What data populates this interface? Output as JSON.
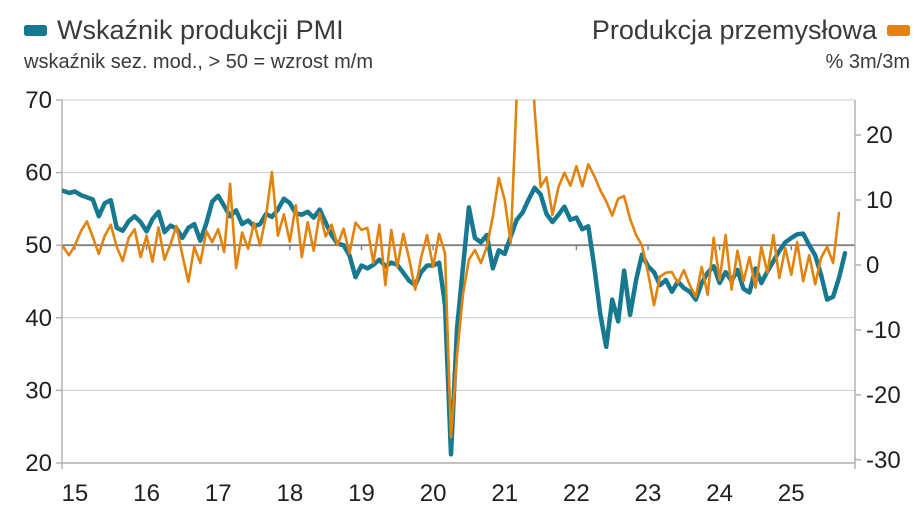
{
  "header": {
    "left": {
      "title": "Wskaźnik produkcji PMI",
      "subtitle": "wskaźnik sez. mod., > 50 = wzrost m/m",
      "swatch_color": "#17798F"
    },
    "right": {
      "title": "Produkcja przemysłowa",
      "subtitle": "% 3m/3m",
      "swatch_color": "#E2830E"
    }
  },
  "colors": {
    "pmi_line": "#17798F",
    "ip_line": "#E2830E",
    "gridline": "#CCCCCC",
    "reference_line": "#808080",
    "axis_line": "#ADADAD",
    "axis_text": "#1F1F1F"
  },
  "chart_data": {
    "type": "line",
    "x_unit": "month",
    "x_tick_labels": [
      "15",
      "16",
      "17",
      "18",
      "19",
      "20",
      "21",
      "22",
      "23",
      "24",
      "25"
    ],
    "first_tick_point_index": 2,
    "points_per_year": 12,
    "left_axis": {
      "min": 20,
      "max": 70,
      "ticks": [
        70,
        60,
        50,
        40,
        30,
        20
      ],
      "gridlines": [
        70,
        60,
        40,
        30
      ]
    },
    "right_axis": {
      "min": -30.5,
      "max": 25.4,
      "ticks": [
        20,
        10,
        0,
        -10,
        -20,
        -30
      ]
    },
    "reference_line_left_value": 50,
    "legend_position": "top",
    "series": [
      {
        "name": "Wskaźnik produkcji PMI",
        "axis": "left",
        "color": "#17798F",
        "stroke_width": 4.5,
        "values": [
          57.5,
          57.2,
          57.4,
          56.9,
          56.6,
          56.3,
          54.0,
          55.8,
          56.2,
          52.4,
          52.0,
          53.3,
          54.0,
          53.2,
          51.9,
          53.6,
          54.6,
          51.8,
          52.7,
          52.3,
          51.0,
          52.4,
          52.9,
          50.6,
          53.0,
          56.0,
          56.8,
          55.4,
          54.0,
          54.8,
          52.9,
          53.4,
          52.6,
          52.9,
          54.3,
          53.9,
          54.9,
          56.4,
          55.8,
          54.4,
          54.2,
          54.6,
          53.8,
          54.9,
          53.1,
          51.4,
          50.2,
          50.0,
          48.6,
          45.6,
          47.2,
          46.8,
          47.3,
          48.0,
          47.1,
          47.6,
          47.3,
          46.2,
          45.1,
          44.5,
          46.3,
          47.2,
          47.2,
          47.6,
          41.8,
          21.2,
          38.5,
          47.0,
          55.2,
          51.0,
          50.4,
          51.4,
          46.8,
          49.3,
          48.8,
          51.2,
          53.5,
          54.5,
          56.3,
          57.9,
          57.0,
          54.3,
          53.2,
          54.2,
          55.3,
          53.5,
          53.8,
          52.2,
          52.6,
          47.0,
          40.5,
          36.0,
          42.5,
          39.5,
          46.5,
          40.4,
          45.2,
          48.7,
          47.1,
          46.3,
          44.5,
          45.2,
          43.6,
          45.0,
          44.1,
          43.6,
          42.5,
          44.8,
          46.2,
          47.1,
          44.8,
          46.3,
          45.1,
          46.6,
          44.0,
          43.5,
          46.8,
          44.8,
          46.4,
          47.8,
          49.2,
          50.4,
          51.0,
          51.5,
          51.6,
          50.0,
          48.6,
          45.9,
          42.5,
          42.9,
          45.5,
          48.9
        ]
      },
      {
        "name": "Produkcja przemysłowa",
        "axis": "right",
        "color": "#E2830E",
        "stroke_width": 2.6,
        "values": [
          2.8,
          1.5,
          3.0,
          5.2,
          6.7,
          4.3,
          1.7,
          4.5,
          6.2,
          2.8,
          0.6,
          4.2,
          5.5,
          1.2,
          4.5,
          0.5,
          5.8,
          0.8,
          3.2,
          6.0,
          1.5,
          -2.6,
          2.8,
          0.3,
          5.2,
          3.5,
          5.5,
          2.0,
          12.5,
          -0.5,
          5.0,
          2.5,
          6.5,
          3.0,
          7.5,
          14.3,
          4.5,
          7.8,
          3.6,
          9.2,
          1.2,
          6.6,
          2.2,
          8.0,
          4.4,
          6.2,
          3.1,
          5.6,
          1.8,
          6.5,
          5.4,
          5.7,
          0.3,
          6.2,
          -3.1,
          5.4,
          -0.3,
          4.8,
          0.9,
          -3.8,
          1.2,
          4.6,
          -0.3,
          4.8,
          1.8,
          -26.5,
          -14.0,
          -4.5,
          0.8,
          2.3,
          0.3,
          2.8,
          7.4,
          13.4,
          10.0,
          3.4,
          26.0,
          38.0,
          44.0,
          24.0,
          12.0,
          13.5,
          7.7,
          12.0,
          14.2,
          12.2,
          15.2,
          12.1,
          15.5,
          13.7,
          11.5,
          9.8,
          7.6,
          10.2,
          10.6,
          7.1,
          4.6,
          3.0,
          -1.2,
          -6.2,
          -1.8,
          -1.2,
          -1.1,
          -2.8,
          -0.8,
          -3.1,
          -4.9,
          -0.3,
          -4.6,
          4.2,
          -2.3,
          4.6,
          -3.8,
          2.2,
          -2.5,
          1.2,
          -3.5,
          2.8,
          -1.2,
          4.6,
          -2.0,
          2.6,
          -1.5,
          3.5,
          -2.5,
          1.5,
          -3.0,
          1.1,
          2.8,
          0.3,
          8.0
        ]
      }
    ]
  }
}
